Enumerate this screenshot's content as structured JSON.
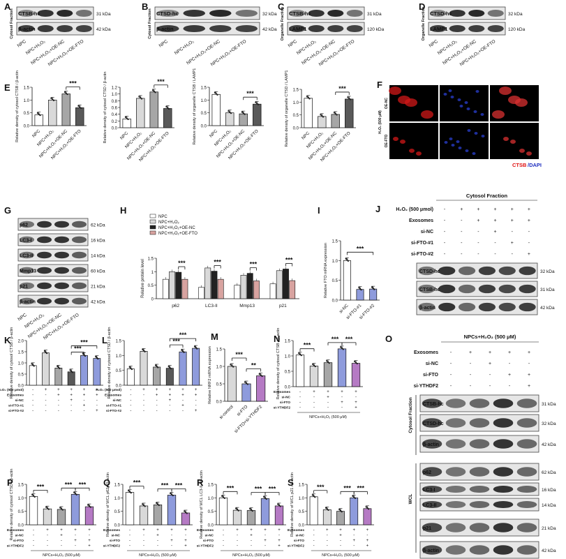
{
  "panel_letters": [
    "A",
    "B",
    "C",
    "D",
    "E",
    "F",
    "G",
    "H",
    "I",
    "J",
    "K",
    "L",
    "M",
    "N",
    "O",
    "P",
    "Q",
    "R",
    "S"
  ],
  "stars": "***",
  "stars2": "**",
  "blots": {
    "A": {
      "side": "Cytosol Fraction",
      "rows": [
        {
          "name": "CTSB-hc",
          "kda": "31 kDa"
        },
        {
          "name": "β-actin",
          "kda": "42 kDa"
        }
      ],
      "lanes": [
        "NPC",
        "NPC+H₂O₂",
        "NPC+H₂O₂+OE-NC",
        "NPC+H₂O₂+OE-FTO"
      ]
    },
    "B": {
      "side": "Cytosol Fraction",
      "rows": [
        {
          "name": "CTSD-hc",
          "kda": "32 kDa"
        },
        {
          "name": "β-actin",
          "kda": "42 kDa"
        }
      ],
      "lanes": [
        "NPC",
        "NPC+H₂O₂",
        "NPC+H₂O₂+OE-NC",
        "NPC+H₂O₂+OE-FTO"
      ]
    },
    "C": {
      "side": "Organelle Fraction",
      "rows": [
        {
          "name": "CTSB-hc",
          "kda": "31 kDa"
        },
        {
          "name": "LAMP1",
          "kda": "120 kDa"
        }
      ],
      "lanes": [
        "NPC",
        "NPC+H₂O₂",
        "NPC+H₂O₂+OE-NC",
        "NPC+H₂O₂+OE-FTO"
      ]
    },
    "D": {
      "side": "Organelle Fraction",
      "rows": [
        {
          "name": "CTSD-hc",
          "kda": "32 kDa"
        },
        {
          "name": "LAMP1",
          "kda": "120 kDa"
        }
      ],
      "lanes": [
        "NPC",
        "NPC+H₂O₂",
        "NPC+H₂O₂+OE-NC",
        "NPC+H₂O₂+OE-FTO"
      ]
    },
    "G": {
      "rows": [
        {
          "name": "p62",
          "kda": "62 kDa"
        },
        {
          "name": "LC3-I",
          "kda": "16 kDa"
        },
        {
          "name": "LC3-II",
          "kda": "14 kDa"
        },
        {
          "name": "Mmp13",
          "kda": "60 kDa"
        },
        {
          "name": "p21",
          "kda": "21 kDa"
        },
        {
          "name": "β-actin",
          "kda": "42 kDa"
        }
      ],
      "lanes": [
        "NPC",
        "NPC+H₂O₂",
        "NPC+H₂O₂+OE-NC",
        "NPC+H₂O₂+OE-FTO"
      ]
    },
    "J": {
      "title": "Cytosol Fraction",
      "conditions": [
        {
          "name": "H₂O₂ (500 μmol)",
          "vals": [
            "-",
            "+",
            "+",
            "+",
            "+",
            "+"
          ]
        },
        {
          "name": "Exosomes",
          "vals": [
            "-",
            "-",
            "+",
            "+",
            "+",
            "+"
          ]
        },
        {
          "name": "si-NC",
          "vals": [
            "-",
            "-",
            "-",
            "+",
            "-",
            "-"
          ]
        },
        {
          "name": "si-FTO-#1",
          "vals": [
            "-",
            "-",
            "-",
            "-",
            "+",
            "-"
          ]
        },
        {
          "name": "si-FTO-#2",
          "vals": [
            "-",
            "-",
            "-",
            "-",
            "-",
            "+"
          ]
        }
      ],
      "rows": [
        {
          "name": "CTSD-hc",
          "kda": "32 kDa"
        },
        {
          "name": "CTSB-hc",
          "kda": "31 kDa"
        },
        {
          "name": "β-actin",
          "kda": "42 kDa"
        }
      ]
    },
    "O": {
      "title": "NPCs+H₂O₂ (500 μM)",
      "conditions": [
        {
          "name": "Exosomes",
          "vals": [
            "-",
            "+",
            "+",
            "+",
            "+"
          ]
        },
        {
          "name": "si-NC",
          "vals": [
            "-",
            "-",
            "+",
            "-",
            "-"
          ]
        },
        {
          "name": "si-FTO",
          "vals": [
            "-",
            "-",
            "-",
            "+",
            "+"
          ]
        },
        {
          "name": "si-YTHDF2",
          "vals": [
            "-",
            "-",
            "-",
            "-",
            "+"
          ]
        }
      ],
      "rows": [
        {
          "name": "CTSB-hc",
          "kda": "31 kDa"
        },
        {
          "name": "CTSD-hc",
          "kda": "32 kDa"
        },
        {
          "name": "β-actin",
          "kda": "42 kDa"
        },
        {
          "name": "p62",
          "kda": "62 kDa"
        },
        {
          "name": "LC3-I",
          "kda": "16 kDa"
        },
        {
          "name": "LC3-II",
          "kda": "14 kDa"
        },
        {
          "name": "p21",
          "kda": "21 kDa"
        },
        {
          "name": "β-actin",
          "kda": "42 kDa"
        }
      ],
      "groups": [
        "Cytosol Fraction",
        "WCL"
      ]
    }
  },
  "fluor": {
    "rows": [
      "OE-NC",
      "OE-FTO"
    ],
    "side": "H₂O₂ (500 μM)",
    "legend_a": "CTSB",
    "legend_b": "/DAPI"
  },
  "chart_data": [
    {
      "panel": "E1",
      "type": "bar",
      "ylabel": "Relative density of cytosol CTSB / β-actin",
      "ylim": [
        0,
        1.5
      ],
      "ticks": [
        0,
        0.5,
        1.0,
        1.5
      ],
      "categories": [
        "NPC",
        "NPC+H₂O₂",
        "NPC+H₂O₂+OE-NC",
        "NPC+H₂O₂+OE-FTO"
      ],
      "values": [
        0.42,
        1.0,
        1.24,
        0.7
      ],
      "sig": [
        {
          "from": 2,
          "to": 3,
          "label": "***"
        }
      ]
    },
    {
      "panel": "E2",
      "type": "bar",
      "ylabel": "Relative density of cytosol CTSD / β-actin",
      "ylim": [
        0,
        1.2
      ],
      "ticks": [
        0,
        0.2,
        0.4,
        0.6,
        0.8,
        1.0,
        1.2
      ],
      "categories": [
        "NPC",
        "NPC+H₂O₂",
        "NPC+H₂O₂+OE-NC",
        "NPC+H₂O₂+OE-FTO"
      ],
      "values": [
        0.26,
        0.87,
        1.06,
        0.57
      ],
      "sig": [
        {
          "from": 2,
          "to": 3,
          "label": "***"
        }
      ]
    },
    {
      "panel": "E3",
      "type": "bar",
      "ylabel": "Relative density of organelle CTSB / LAMP1",
      "ylim": [
        0,
        1.5
      ],
      "ticks": [
        0,
        0.5,
        1.0,
        1.5
      ],
      "categories": [
        "NPC",
        "NPC+H₂O₂",
        "NPC+H₂O₂+OE-NC",
        "NPC+H₂O₂+OE-FTO"
      ],
      "values": [
        1.22,
        0.5,
        0.46,
        0.84
      ],
      "sig": [
        {
          "from": 2,
          "to": 3,
          "label": "***"
        }
      ]
    },
    {
      "panel": "E4",
      "type": "bar",
      "ylabel": "Relative density of organelle CTSD / LAMP1",
      "ylim": [
        0,
        1.5
      ],
      "ticks": [
        0,
        0.5,
        1.0,
        1.5
      ],
      "categories": [
        "NPC",
        "NPC+H₂O₂",
        "NPC+H₂O₂+OE-NC",
        "NPC+H₂O₂+OE-FTO"
      ],
      "values": [
        1.15,
        0.44,
        0.52,
        1.12
      ],
      "sig": [
        {
          "from": 2,
          "to": 3,
          "label": "***"
        }
      ]
    },
    {
      "panel": "H",
      "type": "bar",
      "ylabel": "Relative protein level",
      "ylim": [
        0,
        1.5
      ],
      "ticks": [
        0,
        0.5,
        1.0,
        1.5
      ],
      "categories": [
        "p62",
        "LC3-II",
        "Mmp13",
        "p21"
      ],
      "series": [
        {
          "name": "NPC",
          "values": [
            0.72,
            0.42,
            0.5,
            0.55
          ]
        },
        {
          "name": "NPC+H₂O₂",
          "values": [
            1.0,
            1.14,
            0.87,
            1.04
          ]
        },
        {
          "name": "NPC+H₂O₂+OE-NC",
          "values": [
            0.98,
            1.02,
            0.94,
            1.1
          ]
        },
        {
          "name": "NPC+H₂O₂+OE-FTO",
          "values": [
            0.72,
            0.72,
            0.66,
            0.67
          ]
        }
      ],
      "sig_label": "***"
    },
    {
      "panel": "I",
      "type": "bar",
      "ylabel": "Relative FTO mRNA expression",
      "ylim": [
        0,
        1.5
      ],
      "ticks": [
        0.0,
        0.5,
        1.0,
        1.5
      ],
      "categories": [
        "si-NC",
        "si-FTO-#1",
        "si-FTO-#2"
      ],
      "values": [
        1.0,
        0.27,
        0.28
      ],
      "sig_label": "***"
    },
    {
      "panel": "K",
      "type": "bar",
      "ylabel": "Relative density of cytosol CTSB / β-actin",
      "ylim": [
        0,
        2.0
      ],
      "ticks": [
        0,
        0.5,
        1.0,
        1.5,
        2.0
      ],
      "values": [
        0.88,
        1.45,
        0.77,
        0.6,
        1.33,
        1.2
      ],
      "cond_rows": [
        "H₂O₂ (500 μmol)",
        "Exosomes",
        "si-NC",
        "si-FTO-#1",
        "si-FTO-#2"
      ],
      "cond_vals": [
        [
          "-",
          "+",
          "+",
          "+",
          "+",
          "+"
        ],
        [
          "-",
          "-",
          "+",
          "+",
          "+",
          "+"
        ],
        [
          "-",
          "-",
          "-",
          "+",
          "-",
          "-"
        ],
        [
          "-",
          "-",
          "-",
          "-",
          "+",
          "-"
        ],
        [
          "-",
          "-",
          "-",
          "-",
          "-",
          "+"
        ]
      ]
    },
    {
      "panel": "L",
      "type": "bar",
      "ylabel": "Relative density of cytosol CTSD / β-actin",
      "ylim": [
        0,
        1.5
      ],
      "ticks": [
        0,
        0.5,
        1.0,
        1.5
      ],
      "values": [
        0.55,
        1.14,
        0.61,
        0.57,
        1.12,
        1.24
      ],
      "cond_rows": [
        "H₂O₂ (500 μmol)",
        "Exosomes",
        "si-NC",
        "si-FTO-#1",
        "si-FTO-#2"
      ],
      "cond_vals": [
        [
          "-",
          "+",
          "+",
          "+",
          "+",
          "+"
        ],
        [
          "-",
          "-",
          "+",
          "+",
          "+",
          "+"
        ],
        [
          "-",
          "-",
          "-",
          "+",
          "-",
          "-"
        ],
        [
          "-",
          "-",
          "-",
          "-",
          "+",
          "-"
        ],
        [
          "-",
          "-",
          "-",
          "-",
          "-",
          "+"
        ]
      ]
    },
    {
      "panel": "M",
      "type": "bar",
      "ylabel": "Relative NRF2 mRNA expression",
      "ylim": [
        0,
        1.5
      ],
      "ticks": [
        0.0,
        0.5,
        1.0,
        1.5
      ],
      "categories": [
        "si-control",
        "si-FTO",
        "si-FTO+si-YTHDF2"
      ],
      "values": [
        1.0,
        0.5,
        0.73
      ]
    },
    {
      "panel": "N",
      "type": "bar",
      "ylabel": "Relative density of cytosol CTSB / β-actin",
      "ylim": [
        0,
        1.5
      ],
      "ticks": [
        0,
        0.5,
        1.0,
        1.5
      ],
      "values": [
        1.03,
        0.67,
        0.78,
        1.23,
        0.76
      ],
      "cond_rows": [
        "Exosomes",
        "si-NC",
        "si-FTO",
        "si-YTHDF2"
      ],
      "cond_vals": [
        [
          "-",
          "+",
          "+",
          "+",
          "+"
        ],
        [
          "-",
          "-",
          "+",
          "-",
          "-"
        ],
        [
          "-",
          "-",
          "-",
          "+",
          "+"
        ],
        [
          "-",
          "-",
          "-",
          "-",
          "+"
        ]
      ],
      "footer": "NPCs+H₂O₂ (500 μM)"
    },
    {
      "panel": "P",
      "type": "bar",
      "ylabel": "Relative density of cytosol CTSD / β-actin",
      "ylim": [
        0,
        1.5
      ],
      "ticks": [
        0,
        0.5,
        1.0,
        1.5
      ],
      "values": [
        1.05,
        0.59,
        0.57,
        1.13,
        0.67
      ],
      "cond_rows": [
        "Exosomes",
        "si-NC",
        "si-FTO",
        "si-YTHDF2"
      ],
      "cond_vals": [
        [
          "-",
          "+",
          "+",
          "+",
          "+"
        ],
        [
          "-",
          "-",
          "+",
          "-",
          "-"
        ],
        [
          "-",
          "-",
          "-",
          "+",
          "+"
        ],
        [
          "-",
          "-",
          "-",
          "-",
          "+"
        ]
      ],
      "footer": "NPCs+H₂O₂ (500 μM)"
    },
    {
      "panel": "Q",
      "type": "bar",
      "ylabel": "Relative density of WCL p62 / β-actin",
      "ylim": [
        0,
        1.5
      ],
      "ticks": [
        0,
        0.5,
        1.0,
        1.5
      ],
      "values": [
        1.2,
        0.7,
        0.74,
        1.1,
        0.44
      ],
      "cond_rows": [
        "Exosomes",
        "si-NC",
        "si-FTO",
        "si-YTHDF2"
      ],
      "cond_vals": [
        [
          "-",
          "+",
          "+",
          "+",
          "+"
        ],
        [
          "-",
          "-",
          "+",
          "-",
          "-"
        ],
        [
          "-",
          "-",
          "-",
          "+",
          "+"
        ],
        [
          "-",
          "-",
          "-",
          "-",
          "+"
        ]
      ],
      "footer": "NPCs+H₂O₂ (500 μM)"
    },
    {
      "panel": "R",
      "type": "bar",
      "ylabel": "Relative density of WCL LC3-II / β-actin",
      "ylim": [
        0,
        1.5
      ],
      "ticks": [
        0,
        0.5,
        1.0,
        1.5
      ],
      "values": [
        1.0,
        0.54,
        0.53,
        0.97,
        0.7
      ],
      "cond_rows": [
        "Exosomes",
        "si-NC",
        "si-FTO",
        "si-YTHDF2"
      ],
      "cond_vals": [
        [
          "-",
          "+",
          "+",
          "+",
          "+"
        ],
        [
          "-",
          "-",
          "+",
          "-",
          "-"
        ],
        [
          "-",
          "-",
          "-",
          "+",
          "+"
        ],
        [
          "-",
          "-",
          "-",
          "-",
          "+"
        ]
      ],
      "footer": "NPCs+H₂O₂ (500 μM)"
    },
    {
      "panel": "S",
      "type": "bar",
      "ylabel": "Relative density of WCL p21 / β-actin",
      "ylim": [
        0,
        1.5
      ],
      "ticks": [
        0,
        0.5,
        1.0,
        1.5
      ],
      "values": [
        1.04,
        0.56,
        0.5,
        1.0,
        0.6
      ],
      "cond_rows": [
        "Exosomes",
        "si-NC",
        "si-FTO",
        "si-YTHDF2"
      ],
      "cond_vals": [
        [
          "-",
          "+",
          "+",
          "+",
          "+"
        ],
        [
          "-",
          "-",
          "+",
          "-",
          "-"
        ],
        [
          "-",
          "-",
          "-",
          "+",
          "+"
        ],
        [
          "-",
          "-",
          "-",
          "-",
          "+"
        ]
      ],
      "footer": "NPCs+H₂O₂ (500 μM)"
    }
  ],
  "colors": {
    "white": "#ffffff",
    "light": "#d9d9d9",
    "mid": "#a6a6a6",
    "dark": "#595959",
    "blue": "#8e9bdc",
    "pink": "#d8a3a0",
    "purple": "#b57ac4",
    "black": "#222222"
  }
}
